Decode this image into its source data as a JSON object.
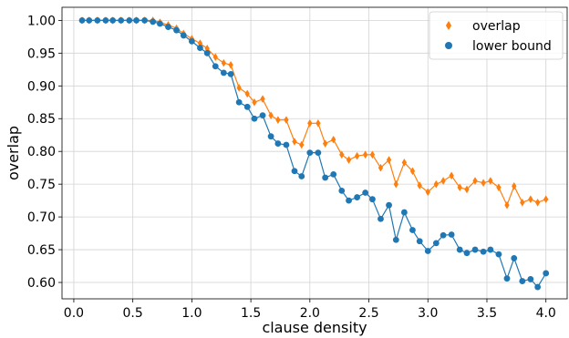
{
  "chart_data": {
    "type": "line",
    "xlabel": "clause density",
    "ylabel": "overlap",
    "xlim": [
      -0.1,
      4.18
    ],
    "ylim": [
      0.575,
      1.02
    ],
    "xticks": [
      "0.0",
      "0.5",
      "1.0",
      "1.5",
      "2.0",
      "2.5",
      "3.0",
      "3.5",
      "4.0"
    ],
    "yticks": [
      "0.60",
      "0.65",
      "0.70",
      "0.75",
      "0.80",
      "0.85",
      "0.90",
      "0.95",
      "1.00"
    ],
    "grid": true,
    "legend_position": "top-right",
    "x": [
      0.07,
      0.13,
      0.2,
      0.27,
      0.33,
      0.4,
      0.47,
      0.53,
      0.6,
      0.67,
      0.73,
      0.8,
      0.87,
      0.93,
      1.0,
      1.07,
      1.13,
      1.2,
      1.27,
      1.33,
      1.4,
      1.47,
      1.53,
      1.6,
      1.67,
      1.73,
      1.8,
      1.87,
      1.93,
      2.0,
      2.07,
      2.13,
      2.2,
      2.27,
      2.33,
      2.4,
      2.47,
      2.53,
      2.6,
      2.67,
      2.73,
      2.8,
      2.87,
      2.93,
      3.0,
      3.07,
      3.13,
      3.2,
      3.27,
      3.33,
      3.4,
      3.47,
      3.53,
      3.6,
      3.67,
      3.73,
      3.8,
      3.87,
      3.93,
      4.0
    ],
    "series": [
      {
        "name": "overlap",
        "color": "#ff7f0e",
        "marker": "diamond",
        "values": [
          1.0,
          1.0,
          1.0,
          1.0,
          1.0,
          1.0,
          1.0,
          1.0,
          1.0,
          1.0,
          0.997,
          0.993,
          0.988,
          0.98,
          0.972,
          0.965,
          0.957,
          0.944,
          0.935,
          0.932,
          0.897,
          0.888,
          0.875,
          0.88,
          0.855,
          0.848,
          0.848,
          0.815,
          0.81,
          0.843,
          0.843,
          0.812,
          0.818,
          0.795,
          0.787,
          0.793,
          0.795,
          0.795,
          0.775,
          0.787,
          0.75,
          0.783,
          0.77,
          0.748,
          0.738,
          0.75,
          0.755,
          0.763,
          0.745,
          0.742,
          0.755,
          0.752,
          0.755,
          0.745,
          0.718,
          0.747,
          0.722,
          0.727,
          0.722,
          0.727
        ]
      },
      {
        "name": "lower bound",
        "color": "#1f77b4",
        "marker": "circle",
        "values": [
          1.0,
          1.0,
          1.0,
          1.0,
          1.0,
          1.0,
          1.0,
          1.0,
          1.0,
          0.998,
          0.995,
          0.99,
          0.985,
          0.977,
          0.968,
          0.958,
          0.95,
          0.93,
          0.92,
          0.918,
          0.875,
          0.868,
          0.85,
          0.855,
          0.823,
          0.812,
          0.81,
          0.77,
          0.762,
          0.798,
          0.798,
          0.76,
          0.765,
          0.74,
          0.725,
          0.73,
          0.737,
          0.727,
          0.697,
          0.718,
          0.665,
          0.707,
          0.68,
          0.663,
          0.648,
          0.66,
          0.672,
          0.673,
          0.65,
          0.645,
          0.65,
          0.647,
          0.65,
          0.643,
          0.606,
          0.637,
          0.602,
          0.605,
          0.593,
          0.614
        ]
      }
    ]
  }
}
